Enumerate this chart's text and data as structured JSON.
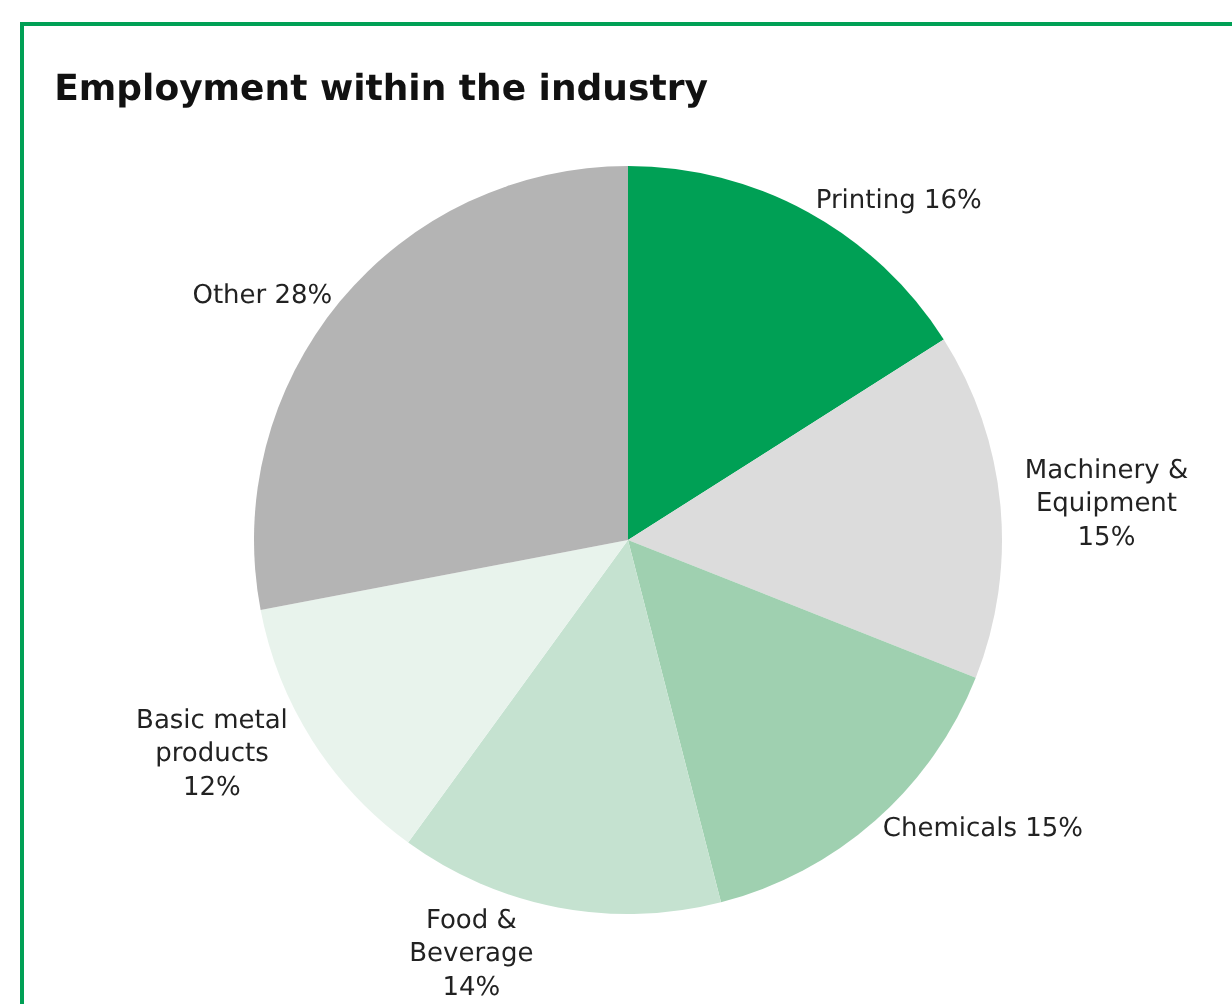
{
  "chart_data": {
    "type": "pie",
    "title": "Employment within the industry",
    "categories": [
      "Printing",
      "Machinery & Equipment",
      "Chemicals",
      "Food & Beverage",
      "Basic metal products",
      "Other"
    ],
    "values": [
      16,
      15,
      15,
      14,
      12,
      28
    ],
    "value_labels": [
      "16%",
      "15%",
      "15%",
      "14%",
      "12%",
      "28%"
    ],
    "colors": [
      "#00a055",
      "#dcdcdc",
      "#9fd0b0",
      "#c5e2d0",
      "#e8f3ec",
      "#b4b4b4"
    ],
    "legend": false
  }
}
